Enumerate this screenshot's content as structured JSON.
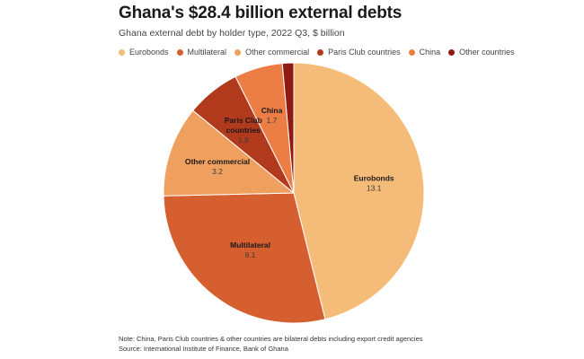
{
  "header": {
    "title": "Ghana's $28.4 billion external debts",
    "subtitle": "Ghana external debt by holder type, 2022 Q3, $ billion"
  },
  "footer": {
    "note": "Note: China, Paris Club countries & other countries are bilateral debts including export credit agencies",
    "source": "Source: International Institute of Finance, Bank of Ghana"
  },
  "chart_data": {
    "type": "pie",
    "title": "Ghana's $28.4 billion external debts",
    "subtitle": "Ghana external debt by holder type, 2022 Q3, $ billion",
    "legend_position": "top-left",
    "start_angle_deg": 0,
    "direction": "clockwise",
    "slices": [
      {
        "label": "Eurobonds",
        "label_lines": [
          "Eurobonds"
        ],
        "value": 13.1,
        "value_label": "13.1",
        "color": "#f5bb78",
        "show_label": true
      },
      {
        "label": "Multilateral",
        "label_lines": [
          "Multilateral"
        ],
        "value": 8.1,
        "value_label": "8.1",
        "color": "#d65f30",
        "show_label": true
      },
      {
        "label": "Other commercial",
        "label_lines": [
          "Other commercial"
        ],
        "value": 3.2,
        "value_label": "3.2",
        "color": "#f0a05e",
        "show_label": true
      },
      {
        "label": "Paris Club countries",
        "label_lines": [
          "Paris Club",
          "countries"
        ],
        "value": 1.9,
        "value_label": "1.9",
        "color": "#b23a1c",
        "show_label": true
      },
      {
        "label": "China",
        "label_lines": [
          "China"
        ],
        "value": 1.7,
        "value_label": "1.7",
        "color": "#ec7d45",
        "show_label": true
      },
      {
        "label": "Other countries",
        "label_lines": [
          "Other countries"
        ],
        "value": 0.4,
        "value_label": "",
        "color": "#8e1a14",
        "show_label": false
      }
    ]
  }
}
